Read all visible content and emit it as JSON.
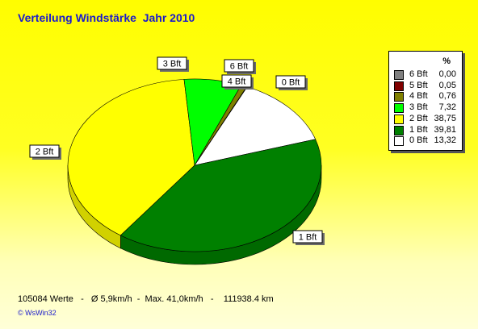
{
  "title": "Verteilung Windstärke  Jahr 2010",
  "footer": "105084 Werte   -   Ø 5,9km/h  -  Max. 41,0km/h   -    111938.4 km",
  "copyright": "© WsWin32",
  "chart_data": {
    "type": "pie",
    "title": "Verteilung Windstärke  Jahr 2010",
    "unit": "%",
    "slices": [
      {
        "label": "6 Bft",
        "value": 0.0,
        "display": "0,00",
        "color": "#808080"
      },
      {
        "label": "5 Bft",
        "value": 0.05,
        "display": "0,05",
        "color": "#800000"
      },
      {
        "label": "4 Bft",
        "value": 0.76,
        "display": "0,76",
        "color": "#808000"
      },
      {
        "label": "3 Bft",
        "value": 7.32,
        "display": "7,32",
        "color": "#00ff00"
      },
      {
        "label": "2 Bft",
        "value": 38.75,
        "display": "38,75",
        "color": "#ffff00"
      },
      {
        "label": "1 Bft",
        "value": 39.81,
        "display": "39,81",
        "color": "#008000"
      },
      {
        "label": "0 Bft",
        "value": 13.32,
        "display": "13,32",
        "color": "#ffffff"
      }
    ],
    "legend": "right",
    "legend_order": [
      "6 Bft",
      "5 Bft",
      "4 Bft",
      "3 Bft",
      "2 Bft",
      "1 Bft",
      "0 Bft"
    ]
  }
}
